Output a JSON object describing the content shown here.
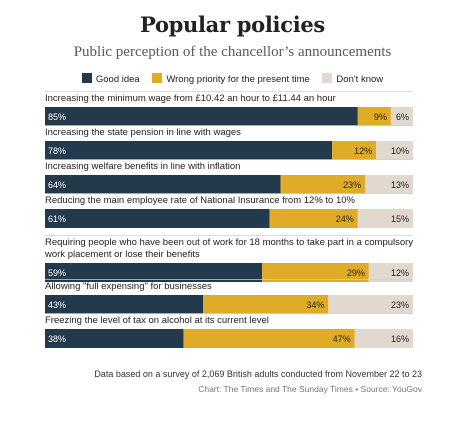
{
  "colors": {
    "good": "#223a4b",
    "wrong": "#e0ac27",
    "dontknow": "#e1d8d0",
    "divider": "#cfcfcf"
  },
  "footnote": "Data based on a survey of 2,069 British adults conducted from November 22 to 23",
  "credit": "Chart: The Times and The Sunday Times • Source: YouGov",
  "chart_data": {
    "type": "bar",
    "orientation": "horizontal",
    "stacked": true,
    "title": "Popular policies",
    "subtitle": "Public perception of the chancellor’s announcements",
    "legend_position": "top",
    "unit": "%",
    "categories": [
      [
        "Increasing the minimum wage from £10.42 an hour to £11.44 an hour"
      ],
      [
        "Increasing the state pension in line with wages"
      ],
      [
        "Increasing welfare benefits in line with inflation"
      ],
      [
        "Reducing the main employee rate of National Insurance from 12% to 10%"
      ],
      [
        "Requiring people who have been out of work for 18 months to take part in a compulsory",
        "work placement or lose their benefits"
      ],
      [
        "Allowing \"full expensing\" for businesses"
      ],
      [
        "Freezing the level of tax on alcohol at its current level"
      ]
    ],
    "series": [
      {
        "name": "Good idea",
        "key": "good",
        "values": [
          85,
          78,
          64,
          61,
          59,
          43,
          38
        ]
      },
      {
        "name": "Wrong priority for the present time",
        "key": "wrong",
        "values": [
          9,
          12,
          23,
          24,
          29,
          34,
          47
        ]
      },
      {
        "name": "Don't know",
        "key": "dontknow",
        "values": [
          6,
          10,
          13,
          15,
          12,
          23,
          16
        ]
      }
    ]
  }
}
